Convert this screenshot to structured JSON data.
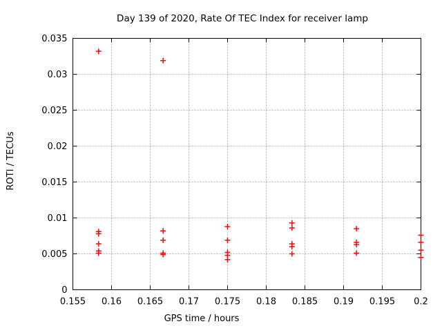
{
  "chart_data": {
    "type": "scatter",
    "title": "Day 139 of 2020, Rate Of TEC Index for receiver lamp",
    "xlabel": "GPS time / hours",
    "ylabel": "ROTI / TECUs",
    "xlim": [
      0.155,
      0.2
    ],
    "ylim": [
      0,
      0.035
    ],
    "xtick_labels": [
      "0.155",
      "0.16",
      "0.165",
      "0.17",
      "0.175",
      "0.18",
      "0.185",
      "0.19",
      "0.195",
      "0.2"
    ],
    "ytick_labels": [
      "0",
      "0.005",
      "0.01",
      "0.015",
      "0.02",
      "0.025",
      "0.03",
      "0.035"
    ],
    "grid": true,
    "legend": "none",
    "marker": "plus",
    "marker_color": "#ff0000",
    "grid_color": "#b0b0b0",
    "border_color": "#000000",
    "series": [
      {
        "name": "ROTI",
        "points": [
          [
            0.158333,
            0.0332
          ],
          [
            0.158333,
            0.0081
          ],
          [
            0.158333,
            0.0078
          ],
          [
            0.158333,
            0.0064
          ],
          [
            0.158333,
            0.0054
          ],
          [
            0.158333,
            0.0051
          ],
          [
            0.166667,
            0.0319
          ],
          [
            0.166667,
            0.0082
          ],
          [
            0.166667,
            0.0069
          ],
          [
            0.166667,
            0.0051
          ],
          [
            0.166667,
            0.0049
          ],
          [
            0.175,
            0.0088
          ],
          [
            0.175,
            0.0069
          ],
          [
            0.175,
            0.0052
          ],
          [
            0.175,
            0.0048
          ],
          [
            0.175,
            0.0042
          ],
          [
            0.183333,
            0.0093
          ],
          [
            0.183333,
            0.0086
          ],
          [
            0.183333,
            0.0064
          ],
          [
            0.183333,
            0.006
          ],
          [
            0.183333,
            0.005
          ],
          [
            0.191667,
            0.0085
          ],
          [
            0.191667,
            0.0066
          ],
          [
            0.191667,
            0.0063
          ],
          [
            0.191667,
            0.0051
          ],
          [
            0.2,
            0.0076
          ],
          [
            0.2,
            0.0066
          ],
          [
            0.2,
            0.0055
          ],
          [
            0.2,
            0.0045
          ]
        ]
      }
    ]
  }
}
